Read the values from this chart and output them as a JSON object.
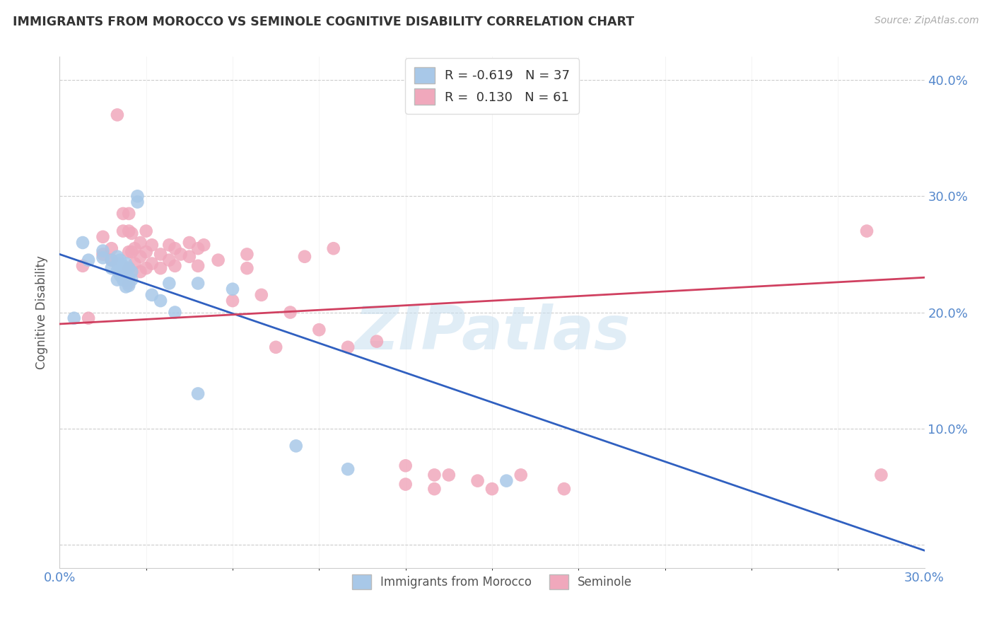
{
  "title": "IMMIGRANTS FROM MOROCCO VS SEMINOLE COGNITIVE DISABILITY CORRELATION CHART",
  "source": "Source: ZipAtlas.com",
  "ylabel": "Cognitive Disability",
  "xlim": [
    0.0,
    0.3
  ],
  "ylim": [
    -0.02,
    0.42
  ],
  "yticks": [
    0.0,
    0.1,
    0.2,
    0.3,
    0.4
  ],
  "ytick_labels": [
    "",
    "10.0%",
    "20.0%",
    "30.0%",
    "40.0%"
  ],
  "xticks": [
    0.0,
    0.03,
    0.06,
    0.09,
    0.12,
    0.15,
    0.18,
    0.21,
    0.24,
    0.27,
    0.3
  ],
  "blue_color": "#a8c8e8",
  "pink_color": "#f0a8bc",
  "blue_line_color": "#3060c0",
  "pink_line_color": "#d04060",
  "axis_label_color": "#5588cc",
  "blue_points": [
    [
      0.005,
      0.195
    ],
    [
      0.008,
      0.26
    ],
    [
      0.01,
      0.245
    ],
    [
      0.015,
      0.253
    ],
    [
      0.015,
      0.247
    ],
    [
      0.018,
      0.245
    ],
    [
      0.018,
      0.238
    ],
    [
      0.02,
      0.248
    ],
    [
      0.02,
      0.242
    ],
    [
      0.02,
      0.236
    ],
    [
      0.02,
      0.228
    ],
    [
      0.021,
      0.245
    ],
    [
      0.021,
      0.238
    ],
    [
      0.021,
      0.232
    ],
    [
      0.022,
      0.24
    ],
    [
      0.022,
      0.234
    ],
    [
      0.022,
      0.228
    ],
    [
      0.023,
      0.242
    ],
    [
      0.023,
      0.235
    ],
    [
      0.023,
      0.228
    ],
    [
      0.023,
      0.222
    ],
    [
      0.024,
      0.238
    ],
    [
      0.024,
      0.23
    ],
    [
      0.024,
      0.223
    ],
    [
      0.025,
      0.235
    ],
    [
      0.025,
      0.228
    ],
    [
      0.027,
      0.3
    ],
    [
      0.027,
      0.295
    ],
    [
      0.032,
      0.215
    ],
    [
      0.035,
      0.21
    ],
    [
      0.038,
      0.225
    ],
    [
      0.04,
      0.2
    ],
    [
      0.048,
      0.225
    ],
    [
      0.048,
      0.13
    ],
    [
      0.06,
      0.22
    ],
    [
      0.082,
      0.085
    ],
    [
      0.1,
      0.065
    ],
    [
      0.155,
      0.055
    ]
  ],
  "pink_points": [
    [
      0.008,
      0.24
    ],
    [
      0.01,
      0.195
    ],
    [
      0.015,
      0.265
    ],
    [
      0.015,
      0.25
    ],
    [
      0.018,
      0.255
    ],
    [
      0.018,
      0.245
    ],
    [
      0.02,
      0.37
    ],
    [
      0.022,
      0.285
    ],
    [
      0.022,
      0.27
    ],
    [
      0.024,
      0.285
    ],
    [
      0.024,
      0.27
    ],
    [
      0.024,
      0.252
    ],
    [
      0.024,
      0.238
    ],
    [
      0.024,
      0.225
    ],
    [
      0.025,
      0.268
    ],
    [
      0.025,
      0.252
    ],
    [
      0.026,
      0.255
    ],
    [
      0.026,
      0.242
    ],
    [
      0.028,
      0.26
    ],
    [
      0.028,
      0.248
    ],
    [
      0.028,
      0.235
    ],
    [
      0.03,
      0.27
    ],
    [
      0.03,
      0.252
    ],
    [
      0.03,
      0.238
    ],
    [
      0.032,
      0.258
    ],
    [
      0.032,
      0.242
    ],
    [
      0.035,
      0.25
    ],
    [
      0.035,
      0.238
    ],
    [
      0.038,
      0.258
    ],
    [
      0.038,
      0.245
    ],
    [
      0.04,
      0.255
    ],
    [
      0.04,
      0.24
    ],
    [
      0.042,
      0.25
    ],
    [
      0.045,
      0.26
    ],
    [
      0.045,
      0.248
    ],
    [
      0.048,
      0.255
    ],
    [
      0.048,
      0.24
    ],
    [
      0.05,
      0.258
    ],
    [
      0.055,
      0.245
    ],
    [
      0.06,
      0.21
    ],
    [
      0.065,
      0.25
    ],
    [
      0.065,
      0.238
    ],
    [
      0.07,
      0.215
    ],
    [
      0.075,
      0.17
    ],
    [
      0.08,
      0.2
    ],
    [
      0.085,
      0.248
    ],
    [
      0.09,
      0.185
    ],
    [
      0.095,
      0.255
    ],
    [
      0.1,
      0.17
    ],
    [
      0.11,
      0.175
    ],
    [
      0.12,
      0.068
    ],
    [
      0.12,
      0.052
    ],
    [
      0.13,
      0.06
    ],
    [
      0.13,
      0.048
    ],
    [
      0.135,
      0.06
    ],
    [
      0.145,
      0.055
    ],
    [
      0.15,
      0.048
    ],
    [
      0.16,
      0.06
    ],
    [
      0.175,
      0.048
    ],
    [
      0.28,
      0.27
    ],
    [
      0.285,
      0.06
    ]
  ],
  "blue_trend_x": [
    0.0,
    0.3
  ],
  "blue_trend_y": [
    0.25,
    -0.005
  ],
  "pink_trend_x": [
    0.0,
    0.3
  ],
  "pink_trend_y": [
    0.19,
    0.23
  ],
  "watermark_text": "ZIPatlas",
  "watermark_color": "#c8dff0",
  "watermark_alpha": 0.55
}
